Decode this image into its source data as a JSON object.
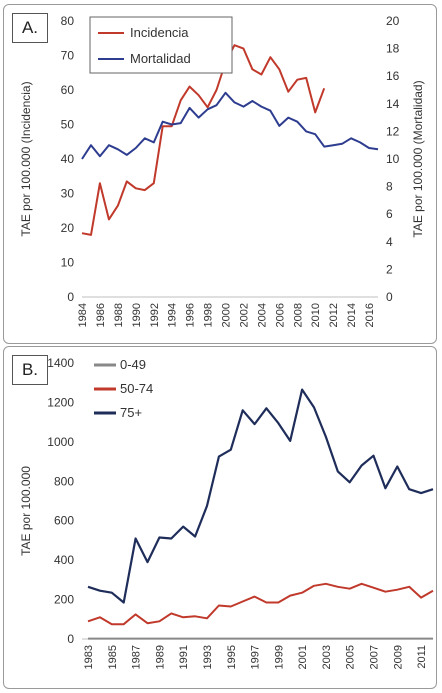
{
  "chart_data": [
    {
      "type": "line",
      "panel_label": "A.",
      "ylabel_left": "TAE por 100.000 (Incidencia)",
      "ylabel_right": "TAE por 100.000 (Mortalidad)",
      "x_ticks": [
        1984,
        1986,
        1988,
        1990,
        1992,
        1994,
        1996,
        1998,
        2000,
        2002,
        2004,
        2006,
        2008,
        2010,
        2012,
        2014,
        2016
      ],
      "ylim_left": [
        0,
        80
      ],
      "yticks_left": [
        0,
        10,
        20,
        30,
        40,
        50,
        60,
        70,
        80
      ],
      "ylim_right": [
        0,
        20
      ],
      "yticks_right": [
        0,
        2,
        4,
        6,
        8,
        10,
        12,
        14,
        16,
        18,
        20
      ],
      "xlim": [
        1984,
        2017
      ],
      "legend_position": "top-left",
      "series": [
        {
          "name": "Incidencia",
          "color": "#c0392b",
          "axis": "left",
          "x": [
            1984,
            1985,
            1986,
            1987,
            1988,
            1989,
            1990,
            1991,
            1992,
            1993,
            1994,
            1995,
            1996,
            1997,
            1998,
            1999,
            2000,
            2001,
            2002,
            2003,
            2004,
            2005,
            2006,
            2007,
            2008,
            2009,
            2010,
            2011
          ],
          "values": [
            18.5,
            18,
            33,
            22.5,
            26.5,
            33.5,
            31.5,
            31,
            33,
            49.5,
            49.5,
            57,
            61,
            58.5,
            55,
            60,
            68,
            73,
            72,
            66,
            64.5,
            69.5,
            66,
            59.5,
            63,
            63.5,
            53.5,
            60.5
          ]
        },
        {
          "name": "Mortalidad",
          "color": "#2e3d8f",
          "axis": "right",
          "x": [
            1984,
            1985,
            1986,
            1987,
            1988,
            1989,
            1990,
            1991,
            1992,
            1993,
            1994,
            1995,
            1996,
            1997,
            1998,
            1999,
            2000,
            2001,
            2002,
            2003,
            2004,
            2005,
            2006,
            2007,
            2008,
            2009,
            2010,
            2011,
            2012,
            2013,
            2014,
            2015,
            2016,
            2017
          ],
          "values": [
            10,
            11,
            10.2,
            11,
            10.7,
            10.3,
            10.8,
            11.5,
            11.2,
            12.7,
            12.5,
            12.6,
            13.7,
            13,
            13.6,
            13.9,
            14.8,
            14.1,
            13.8,
            14.2,
            13.8,
            13.5,
            12.4,
            13,
            12.7,
            12,
            11.8,
            10.9,
            11,
            11.1,
            11.5,
            11.2,
            10.8,
            10.7
          ]
        }
      ]
    },
    {
      "type": "line",
      "panel_label": "B.",
      "ylabel": "TAE por 100.000",
      "x_ticks": [
        1983,
        1985,
        1987,
        1989,
        1991,
        1993,
        1995,
        1997,
        1999,
        2001,
        2003,
        2005,
        2007,
        2009,
        2011
      ],
      "xlim": [
        1983,
        2012
      ],
      "ylim": [
        0,
        1400
      ],
      "yticks": [
        0,
        200,
        400,
        600,
        800,
        1000,
        1200,
        1400
      ],
      "legend_position": "top-left",
      "series": [
        {
          "name": "0-49",
          "color": "#888888",
          "x": [
            1983,
            1984,
            1985,
            1986,
            1987,
            1988,
            1989,
            1990,
            1991,
            1992,
            1993,
            1994,
            1995,
            1996,
            1997,
            1998,
            1999,
            2000,
            2001,
            2002,
            2003,
            2004,
            2005,
            2006,
            2007,
            2008,
            2009,
            2010,
            2011,
            2012
          ],
          "values": [
            2,
            2,
            2,
            2,
            2,
            2,
            2,
            2,
            2,
            2,
            2,
            2,
            2,
            2,
            2,
            2,
            2,
            2,
            2,
            2,
            2,
            2,
            2,
            2,
            2,
            2,
            2,
            2,
            2,
            2
          ]
        },
        {
          "name": "50-74",
          "color": "#c0392b",
          "x": [
            1983,
            1984,
            1985,
            1986,
            1987,
            1988,
            1989,
            1990,
            1991,
            1992,
            1993,
            1994,
            1995,
            1996,
            1997,
            1998,
            1999,
            2000,
            2001,
            2002,
            2003,
            2004,
            2005,
            2006,
            2007,
            2008,
            2009,
            2010,
            2011,
            2012
          ],
          "values": [
            90,
            110,
            75,
            75,
            125,
            80,
            90,
            130,
            110,
            115,
            105,
            170,
            165,
            190,
            215,
            185,
            185,
            220,
            235,
            270,
            280,
            265,
            255,
            280,
            260,
            240,
            250,
            265,
            210,
            245
          ]
        },
        {
          "name": "75+",
          "color": "#1f2d5a",
          "x": [
            1983,
            1984,
            1985,
            1986,
            1987,
            1988,
            1989,
            1990,
            1991,
            1992,
            1993,
            1994,
            1995,
            1996,
            1997,
            1998,
            1999,
            2000,
            2001,
            2002,
            2003,
            2004,
            2005,
            2006,
            2007,
            2008,
            2009,
            2010,
            2011,
            2012
          ],
          "values": [
            265,
            245,
            235,
            185,
            510,
            390,
            515,
            510,
            570,
            520,
            675,
            925,
            960,
            1160,
            1090,
            1170,
            1095,
            1005,
            1265,
            1175,
            1025,
            850,
            795,
            880,
            930,
            765,
            875,
            760,
            740,
            760
          ]
        }
      ]
    }
  ]
}
